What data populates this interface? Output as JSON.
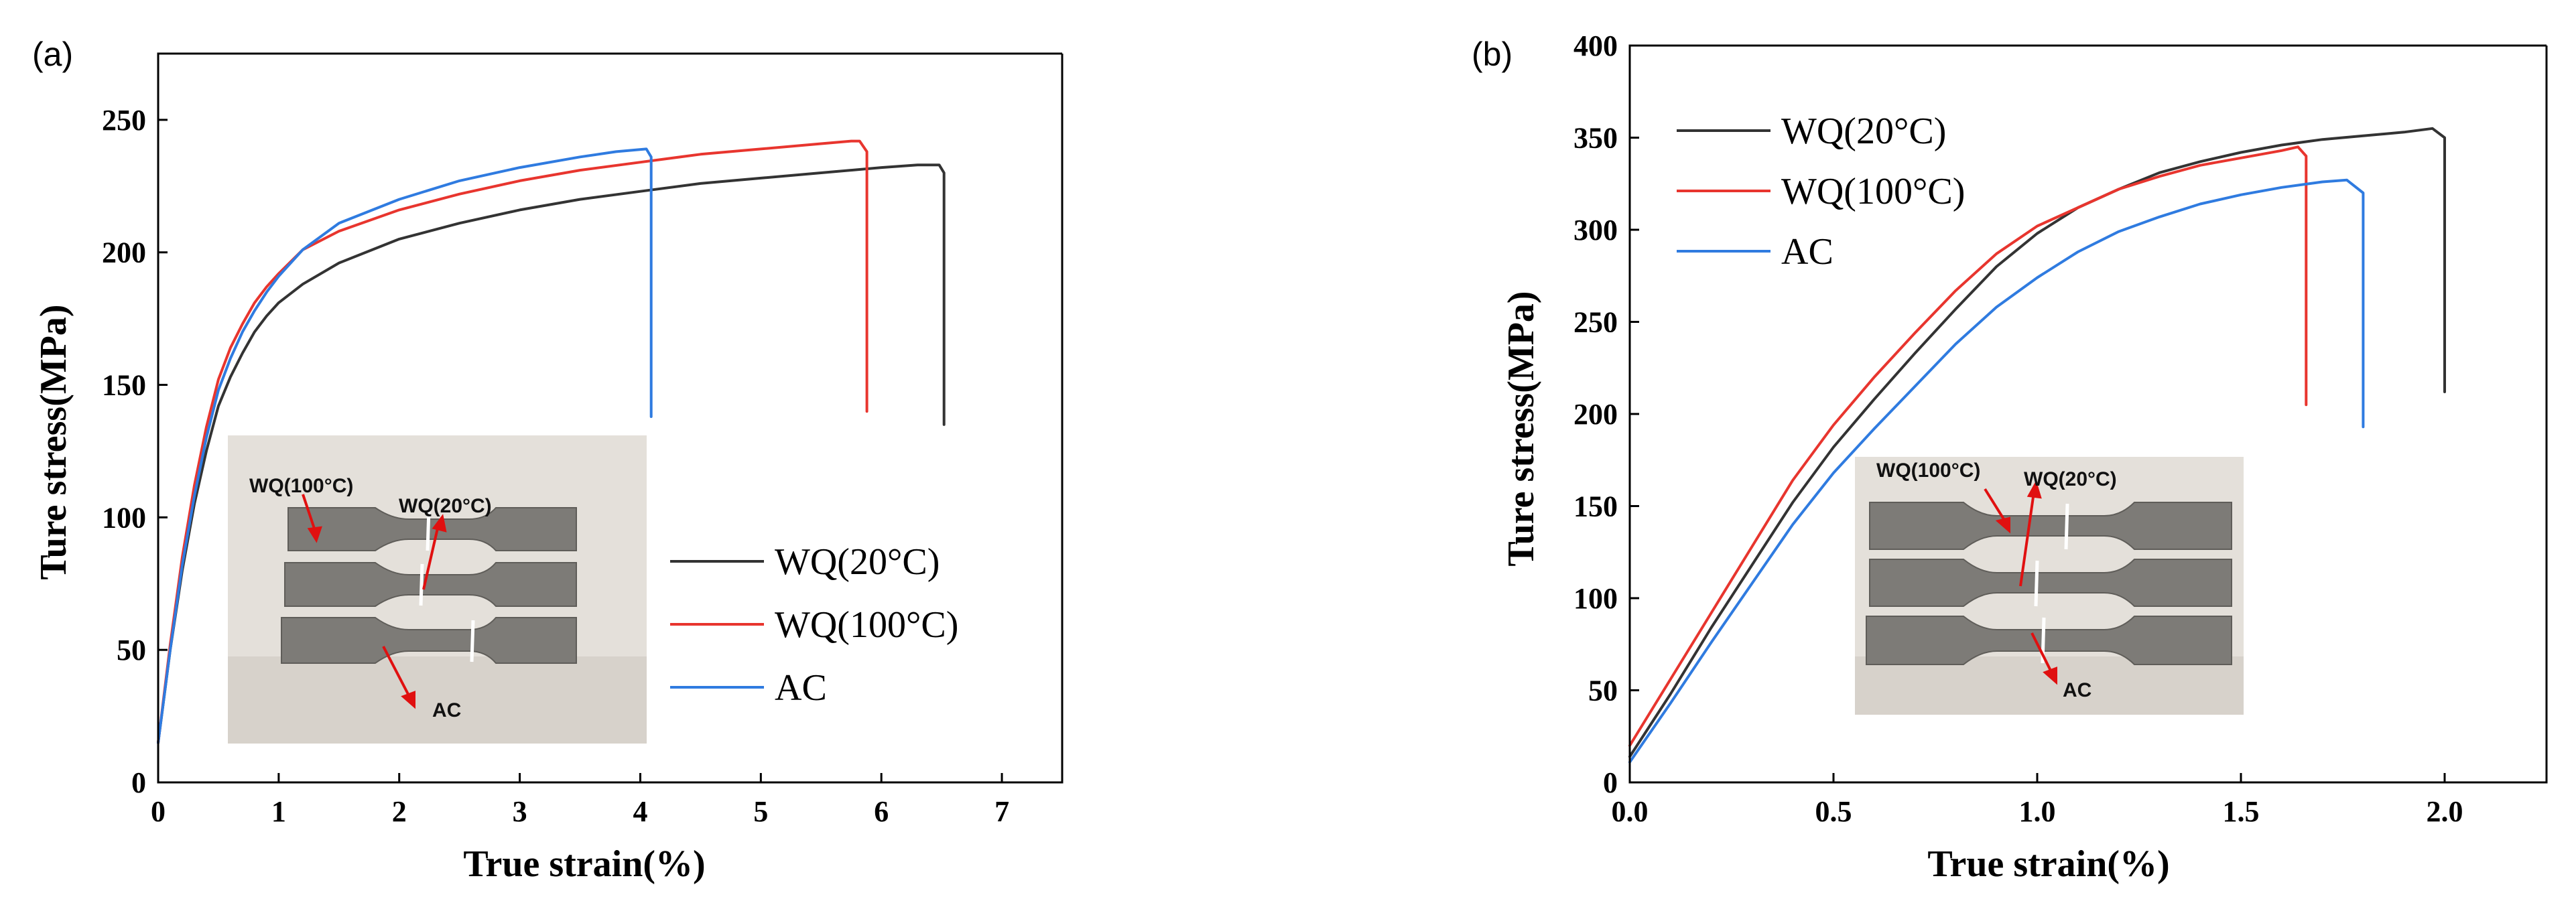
{
  "chart_data": [
    {
      "panel": "(a)",
      "type": "line",
      "xlabel": "True strain(%)",
      "ylabel": "Ture stress(MPa)",
      "xlim": [
        0,
        7.5
      ],
      "ylim": [
        0,
        275
      ],
      "xticks": [
        0,
        1,
        2,
        3,
        4,
        5,
        6,
        7
      ],
      "yticks": [
        0,
        50,
        100,
        150,
        200,
        250
      ],
      "legend_position": "lower-right",
      "series": [
        {
          "name": "WQ(20°C)",
          "color": "#333333",
          "x": [
            0,
            0.1,
            0.2,
            0.3,
            0.4,
            0.5,
            0.6,
            0.7,
            0.8,
            0.9,
            1.0,
            1.2,
            1.5,
            2.0,
            2.5,
            3.0,
            3.5,
            4.0,
            4.5,
            5.0,
            5.5,
            6.0,
            6.3,
            6.48,
            6.52,
            6.52
          ],
          "y": [
            15,
            50,
            80,
            105,
            125,
            142,
            153,
            162,
            170,
            176,
            181,
            188,
            196,
            205,
            211,
            216,
            220,
            223,
            226,
            228,
            230,
            232,
            233,
            233,
            230,
            135
          ]
        },
        {
          "name": "WQ(100°C)",
          "color": "#e8352e",
          "x": [
            0,
            0.1,
            0.2,
            0.3,
            0.4,
            0.5,
            0.6,
            0.7,
            0.8,
            0.9,
            1.0,
            1.2,
            1.5,
            2.0,
            2.5,
            3.0,
            3.5,
            4.0,
            4.5,
            5.0,
            5.5,
            5.75,
            5.82,
            5.88,
            5.88
          ],
          "y": [
            15,
            52,
            85,
            112,
            134,
            152,
            164,
            173,
            181,
            187,
            192,
            201,
            208,
            216,
            222,
            227,
            231,
            234,
            237,
            239,
            241,
            242,
            242,
            238,
            140
          ]
        },
        {
          "name": "AC",
          "color": "#2f7be0",
          "x": [
            0,
            0.1,
            0.2,
            0.3,
            0.4,
            0.5,
            0.6,
            0.7,
            0.8,
            0.9,
            1.0,
            1.2,
            1.5,
            2.0,
            2.5,
            3.0,
            3.5,
            3.8,
            4.05,
            4.09,
            4.09
          ],
          "y": [
            15,
            50,
            82,
            108,
            130,
            148,
            160,
            170,
            178,
            185,
            191,
            201,
            211,
            220,
            227,
            232,
            236,
            238,
            239,
            236,
            138
          ]
        }
      ],
      "photo_labels": [
        "WQ(100°C)",
        "WQ(20°C)",
        "AC"
      ]
    },
    {
      "panel": "(b)",
      "type": "line",
      "xlabel": "True strain(%)",
      "ylabel": "Ture stress(MPa)",
      "xlim": [
        0,
        2.25
      ],
      "ylim": [
        0,
        400
      ],
      "xticks": [
        0.0,
        0.5,
        1.0,
        1.5,
        2.0
      ],
      "yticks": [
        0,
        50,
        100,
        150,
        200,
        250,
        300,
        350,
        400
      ],
      "legend_position": "top-left",
      "series": [
        {
          "name": "WQ(20°C)",
          "color": "#333333",
          "x": [
            0,
            0.1,
            0.2,
            0.3,
            0.4,
            0.5,
            0.6,
            0.7,
            0.8,
            0.9,
            1.0,
            1.1,
            1.2,
            1.3,
            1.4,
            1.5,
            1.6,
            1.7,
            1.8,
            1.9,
            1.97,
            2.0,
            2.0
          ],
          "y": [
            14,
            48,
            84,
            118,
            152,
            182,
            208,
            233,
            257,
            280,
            298,
            312,
            322,
            331,
            337,
            342,
            346,
            349,
            351,
            353,
            355,
            350,
            212
          ]
        },
        {
          "name": "WQ(100°C)",
          "color": "#e8352e",
          "x": [
            0,
            0.1,
            0.2,
            0.3,
            0.4,
            0.5,
            0.6,
            0.7,
            0.8,
            0.9,
            1.0,
            1.1,
            1.2,
            1.3,
            1.4,
            1.5,
            1.6,
            1.64,
            1.66,
            1.66
          ],
          "y": [
            20,
            56,
            92,
            128,
            164,
            194,
            220,
            244,
            267,
            287,
            302,
            312,
            322,
            329,
            335,
            339,
            343,
            345,
            340,
            205
          ]
        },
        {
          "name": "AC",
          "color": "#2f7be0",
          "x": [
            0,
            0.1,
            0.2,
            0.3,
            0.4,
            0.5,
            0.6,
            0.7,
            0.8,
            0.9,
            1.0,
            1.1,
            1.2,
            1.3,
            1.4,
            1.5,
            1.6,
            1.7,
            1.76,
            1.8,
            1.8
          ],
          "y": [
            11,
            43,
            76,
            108,
            140,
            168,
            192,
            215,
            238,
            258,
            274,
            288,
            299,
            307,
            314,
            319,
            323,
            326,
            327,
            320,
            193
          ]
        }
      ],
      "photo_labels": [
        "WQ(100°C)",
        "WQ(20°C)",
        "AC"
      ]
    }
  ]
}
